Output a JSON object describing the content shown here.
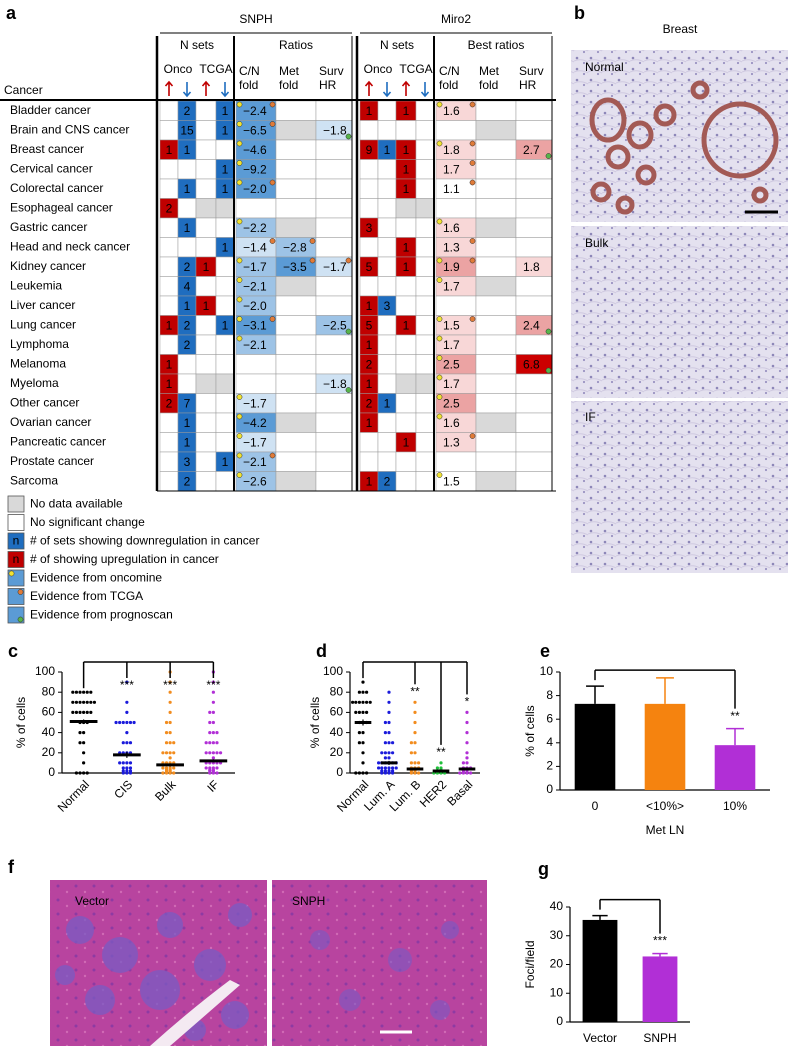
{
  "table": {
    "label": "a",
    "groups": [
      {
        "name": "SNPH",
        "sets": "N sets",
        "ratios": "Ratios"
      },
      {
        "name": "Miro2",
        "sets": "N sets",
        "ratios": "Best ratios"
      }
    ],
    "count_heads": [
      "Onco",
      "TCGA"
    ],
    "fold_heads": [
      "C/N fold",
      "Met fold",
      "Surv HR"
    ],
    "row_head": "Cancer",
    "up_color": "#c00000",
    "down_color": "#1f6dbf",
    "rows": [
      {
        "cancer": "Bladder cancer",
        "cells": [
          null,
          "2",
          null,
          "1",
          {
            "text": "−2.4",
            "fill": "#5b9bd5",
            "dots": [
              "#f1e332",
              "#e07b39"
            ]
          },
          null,
          null,
          "1",
          null,
          "1",
          null,
          {
            "text": "1.6",
            "fill": "#f8d7d7",
            "dots": [
              "#f1e332",
              "#e07b39"
            ]
          },
          null,
          null
        ]
      },
      {
        "cancer": "Brain and CNS cancer",
        "cells": [
          null,
          "15",
          null,
          "1",
          {
            "text": "−6.5",
            "fill": "#5b9bd5",
            "dots": [
              "#f1e332",
              "#e07b39"
            ]
          },
          {
            "fill": "#d9d9d9"
          },
          {
            "text": "−1.8",
            "fill": "#cfe2f3",
            "dots": [
              "#57b44a"
            ]
          },
          null,
          null,
          null,
          null,
          null,
          {
            "fill": "#d9d9d9"
          },
          null
        ]
      },
      {
        "cancer": "Breast cancer",
        "cells": [
          "1",
          "1",
          null,
          null,
          {
            "text": "−4.6",
            "fill": "#5b9bd5",
            "dots": [
              "#f1e332"
            ]
          },
          null,
          null,
          "9",
          "1",
          "1",
          null,
          {
            "text": "1.8",
            "fill": "#f8d7d7",
            "dots": [
              "#f1e332",
              "#e07b39"
            ]
          },
          null,
          {
            "text": "2.7",
            "fill": "#eba3a3",
            "dots": [
              "#57b44a"
            ]
          }
        ]
      },
      {
        "cancer": "Cervical cancer",
        "cells": [
          null,
          null,
          null,
          "1",
          {
            "text": "−9.2",
            "fill": "#5b9bd5",
            "dots": [
              "#f1e332"
            ]
          },
          null,
          null,
          null,
          null,
          "1",
          null,
          {
            "text": "1.7",
            "fill": "#f8d7d7",
            "dots": [
              "#e07b39"
            ]
          },
          null,
          null
        ]
      },
      {
        "cancer": "Colorectal cancer",
        "cells": [
          null,
          "1",
          null,
          "1",
          {
            "text": "−2.0",
            "fill": "#5b9bd5",
            "dots": [
              "#f1e332",
              "#e07b39"
            ]
          },
          null,
          null,
          null,
          null,
          "1",
          null,
          {
            "text": "1.1",
            "fill": "#ffffff",
            "dots": [
              "#e07b39"
            ]
          },
          null,
          null
        ]
      },
      {
        "cancer": "Esophageal cancer",
        "cells": [
          "2",
          null,
          {
            "fill": "#d9d9d9"
          },
          {
            "fill": "#d9d9d9"
          },
          null,
          null,
          null,
          null,
          null,
          {
            "fill": "#d9d9d9"
          },
          {
            "fill": "#d9d9d9"
          },
          null,
          null,
          null
        ]
      },
      {
        "cancer": "Gastric cancer",
        "cells": [
          null,
          "1",
          null,
          null,
          {
            "text": "−2.2",
            "fill": "#9dc3e6",
            "dots": [
              "#f1e332"
            ]
          },
          {
            "fill": "#d9d9d9"
          },
          null,
          "3",
          null,
          null,
          null,
          {
            "text": "1.6",
            "fill": "#f8d7d7",
            "dots": [
              "#f1e332"
            ]
          },
          {
            "fill": "#d9d9d9"
          },
          null
        ]
      },
      {
        "cancer": "Head and neck cancer",
        "cells": [
          null,
          null,
          null,
          "1",
          {
            "text": "−1.4",
            "fill": "#cfe2f3",
            "dots": [
              "#e07b39"
            ]
          },
          {
            "text": "−2.8",
            "fill": "#9dc3e6",
            "dots": [
              "#e07b39"
            ]
          },
          null,
          null,
          null,
          "1",
          null,
          {
            "text": "1.3",
            "fill": "#f8d7d7",
            "dots": [
              "#e07b39"
            ]
          },
          null,
          null
        ]
      },
      {
        "cancer": "Kidney cancer",
        "cells": [
          null,
          "2",
          "1",
          null,
          {
            "text": "−1.7",
            "fill": "#9dc3e6",
            "dots": [
              "#f1e332"
            ]
          },
          {
            "text": "−3.5",
            "fill": "#5b9bd5",
            "dots": [
              "#e07b39"
            ]
          },
          {
            "text": "−1.7",
            "fill": "#cfe2f3",
            "dots": [
              "#e07b39"
            ]
          },
          "5",
          null,
          "1",
          null,
          {
            "text": "1.9",
            "fill": "#eba3a3",
            "dots": [
              "#f1e332",
              "#e07b39"
            ]
          },
          null,
          {
            "text": "1.8",
            "fill": "#f8d7d7"
          }
        ]
      },
      {
        "cancer": "Leukemia",
        "cells": [
          null,
          "4",
          null,
          null,
          {
            "text": "−2.1",
            "fill": "#9dc3e6",
            "dots": [
              "#f1e332"
            ]
          },
          {
            "fill": "#d9d9d9"
          },
          null,
          null,
          null,
          null,
          null,
          {
            "text": "1.7",
            "fill": "#f8d7d7",
            "dots": [
              "#f1e332"
            ]
          },
          {
            "fill": "#d9d9d9"
          },
          null
        ]
      },
      {
        "cancer": "Liver cancer",
        "cells": [
          null,
          "1",
          "1",
          null,
          {
            "text": "−2.0",
            "fill": "#9dc3e6",
            "dots": [
              "#f1e332"
            ]
          },
          null,
          null,
          "1",
          "3",
          null,
          null,
          null,
          null,
          null
        ]
      },
      {
        "cancer": "Lung cancer",
        "cells": [
          "1",
          "2",
          null,
          "1",
          {
            "text": "−3.1",
            "fill": "#5b9bd5",
            "dots": [
              "#f1e332",
              "#e07b39"
            ]
          },
          null,
          {
            "text": "−2.5",
            "fill": "#9dc3e6",
            "dots": [
              "#57b44a"
            ]
          },
          "5",
          null,
          "1",
          null,
          {
            "text": "1.5",
            "fill": "#f8d7d7",
            "dots": [
              "#f1e332",
              "#e07b39"
            ]
          },
          null,
          {
            "text": "2.4",
            "fill": "#eba3a3",
            "dots": [
              "#57b44a"
            ]
          }
        ]
      },
      {
        "cancer": "Lymphoma",
        "cells": [
          null,
          "2",
          null,
          null,
          {
            "text": "−2.1",
            "fill": "#9dc3e6",
            "dots": [
              "#f1e332"
            ]
          },
          null,
          null,
          "1",
          null,
          null,
          null,
          {
            "text": "1.7",
            "fill": "#f8d7d7",
            "dots": [
              "#f1e332"
            ]
          },
          null,
          null
        ]
      },
      {
        "cancer": "Melanoma",
        "cells": [
          "1",
          null,
          null,
          null,
          null,
          null,
          null,
          "2",
          null,
          null,
          null,
          {
            "text": "2.5",
            "fill": "#eba3a3",
            "dots": [
              "#f1e332"
            ]
          },
          null,
          {
            "text": "6.8",
            "fill": "#cc0000",
            "dots": [
              "#57b44a"
            ]
          }
        ]
      },
      {
        "cancer": "Myeloma",
        "cells": [
          "1",
          null,
          {
            "fill": "#d9d9d9"
          },
          {
            "fill": "#d9d9d9"
          },
          null,
          null,
          {
            "text": "−1.8",
            "fill": "#cfe2f3",
            "dots": [
              "#57b44a"
            ]
          },
          "1",
          null,
          {
            "fill": "#d9d9d9"
          },
          {
            "fill": "#d9d9d9"
          },
          {
            "text": "1.7",
            "fill": "#f8d7d7",
            "dots": [
              "#f1e332"
            ]
          },
          null,
          null
        ]
      },
      {
        "cancer": "Other cancer",
        "cells": [
          "2",
          "7",
          null,
          null,
          {
            "text": "−1.7",
            "fill": "#cfe2f3",
            "dots": [
              "#f1e332"
            ]
          },
          null,
          null,
          "2",
          "1",
          null,
          null,
          {
            "text": "2.5",
            "fill": "#eba3a3",
            "dots": [
              "#f1e332"
            ]
          },
          null,
          null
        ]
      },
      {
        "cancer": "Ovarian cancer",
        "cells": [
          null,
          "1",
          null,
          null,
          {
            "text": "−4.2",
            "fill": "#5b9bd5",
            "dots": [
              "#f1e332"
            ]
          },
          {
            "fill": "#d9d9d9"
          },
          null,
          "1",
          null,
          null,
          null,
          {
            "text": "1.6",
            "fill": "#f8d7d7",
            "dots": [
              "#f1e332"
            ]
          },
          {
            "fill": "#d9d9d9"
          },
          null
        ]
      },
      {
        "cancer": "Pancreatic cancer",
        "cells": [
          null,
          "1",
          null,
          null,
          {
            "text": "−1.7",
            "fill": "#cfe2f3",
            "dots": [
              "#f1e332"
            ]
          },
          null,
          null,
          null,
          null,
          "1",
          null,
          {
            "text": "1.3",
            "fill": "#f8d7d7",
            "dots": [
              "#e07b39"
            ]
          },
          null,
          null
        ]
      },
      {
        "cancer": "Prostate cancer",
        "cells": [
          null,
          "3",
          null,
          "1",
          {
            "text": "−2.1",
            "fill": "#9dc3e6",
            "dots": [
              "#f1e332",
              "#e07b39"
            ]
          },
          null,
          null,
          null,
          null,
          null,
          null,
          null,
          null,
          null
        ]
      },
      {
        "cancer": "Sarcoma",
        "cells": [
          null,
          "2",
          null,
          null,
          {
            "text": "−2.6",
            "fill": "#9dc3e6",
            "dots": [
              "#f1e332"
            ]
          },
          {
            "fill": "#d9d9d9"
          },
          null,
          "1",
          "2",
          null,
          null,
          {
            "text": "1.5",
            "fill": "#ffffff",
            "dots": [
              "#f1e332"
            ]
          },
          {
            "fill": "#d9d9d9"
          },
          null
        ]
      }
    ]
  },
  "legend": [
    {
      "text": "No data available",
      "swatch": "#d9d9d9"
    },
    {
      "text": "No significant change",
      "swatch": "#ffffff"
    },
    {
      "text": "# of sets showing downregulation in cancer",
      "swatch": "#1f6dbf",
      "glyph": "n"
    },
    {
      "text": "# of showing upregulation in cancer",
      "swatch": "#c00000",
      "glyph": "n"
    },
    {
      "text": "Evidence from oncomine",
      "swatch": "#5b9bd5",
      "dot": "#f1e332"
    },
    {
      "text": "Evidence from TCGA",
      "swatch": "#5b9bd5",
      "dot": "#e07b39"
    },
    {
      "text": "Evidence from prognoscan",
      "swatch": "#5b9bd5",
      "dot": "#57b44a"
    }
  ],
  "images_b": {
    "label": "b",
    "title": "Breast",
    "images": [
      "Normal",
      "Bulk",
      "IF"
    ]
  },
  "images_f": {
    "label": "f",
    "images": [
      "Vector",
      "SNPH"
    ]
  },
  "chart_data": [
    {
      "type": "strip",
      "label": "c",
      "ylabel": "% of cells",
      "categories": [
        "Normal",
        "CIS",
        "Bulk",
        "IF"
      ],
      "colors": [
        "#000000",
        "#1a1adb",
        "#f28c1e",
        "#b12fd6"
      ],
      "points": [
        [
          80,
          80,
          80,
          80,
          80,
          80,
          70,
          70,
          70,
          70,
          70,
          70,
          70,
          60,
          60,
          60,
          60,
          60,
          60,
          50,
          50,
          50,
          40,
          40,
          30,
          30,
          20,
          10,
          0,
          0,
          0,
          0
        ],
        [
          90,
          70,
          60,
          50,
          50,
          50,
          50,
          50,
          50,
          40,
          30,
          30,
          30,
          20,
          20,
          20,
          20,
          10,
          10,
          10,
          10,
          5,
          5,
          5,
          2,
          2,
          2,
          0,
          0,
          0
        ],
        [
          100,
          90,
          80,
          70,
          60,
          50,
          50,
          40,
          40,
          30,
          30,
          30,
          20,
          20,
          20,
          20,
          15,
          10,
          10,
          10,
          10,
          8,
          5,
          5,
          5,
          5,
          3,
          3,
          2,
          2,
          1,
          1,
          0,
          0,
          0,
          0
        ],
        [
          100,
          90,
          80,
          70,
          60,
          60,
          50,
          50,
          40,
          40,
          40,
          30,
          30,
          30,
          30,
          20,
          20,
          20,
          20,
          20,
          15,
          10,
          10,
          10,
          10,
          10,
          5,
          5,
          5,
          5,
          3,
          3,
          2,
          2,
          0,
          0,
          0
        ]
      ],
      "means": [
        51,
        18,
        8,
        12
      ],
      "sems": [
        2,
        3,
        1.5,
        1.5
      ],
      "significance": [
        null,
        "***",
        "***",
        "***"
      ],
      "ylim": [
        0,
        100
      ],
      "yticks": [
        0,
        20,
        40,
        60,
        80,
        100
      ]
    },
    {
      "type": "strip",
      "label": "d",
      "ylabel": "% of cells",
      "categories": [
        "Normal",
        "Lum. A",
        "Lum. B",
        "HER2",
        "Basal"
      ],
      "colors": [
        "#000000",
        "#1a1adb",
        "#f28c1e",
        "#1fbf3a",
        "#b12fd6"
      ],
      "points": [
        [
          90,
          80,
          80,
          80,
          70,
          70,
          70,
          70,
          70,
          70,
          60,
          60,
          60,
          60,
          50,
          50,
          50,
          40,
          40,
          30,
          30,
          20,
          10,
          0,
          0,
          0,
          0
        ],
        [
          80,
          70,
          60,
          50,
          50,
          40,
          40,
          30,
          30,
          30,
          20,
          20,
          20,
          20,
          15,
          15,
          10,
          10,
          10,
          10,
          10,
          10,
          5,
          5,
          5,
          5,
          5,
          5,
          2,
          2,
          2,
          2,
          0,
          0,
          0,
          0
        ],
        [
          70,
          60,
          50,
          40,
          30,
          30,
          20,
          20,
          10,
          10,
          10,
          5,
          5,
          5,
          2,
          2,
          0,
          0,
          0
        ],
        [
          10,
          5,
          5,
          3,
          2,
          2,
          1,
          1,
          0,
          0,
          0,
          0
        ],
        [
          60,
          50,
          40,
          30,
          20,
          15,
          10,
          10,
          5,
          5,
          5,
          2,
          2,
          0,
          0,
          0,
          0
        ]
      ],
      "means": [
        50,
        10,
        4,
        2,
        4
      ],
      "sems": [
        3,
        2,
        1.5,
        0.5,
        1.5
      ],
      "significance": [
        null,
        null,
        "**",
        "**",
        "*"
      ],
      "ylim": [
        0,
        100
      ],
      "yticks": [
        0,
        20,
        40,
        60,
        80,
        100
      ]
    },
    {
      "type": "bar",
      "label": "e",
      "ylabel": "% of cells",
      "xlabel": "Met LN",
      "categories": [
        "0",
        "<10%>",
        "10%"
      ],
      "values": [
        7.3,
        7.3,
        3.8
      ],
      "errors": [
        1.5,
        2.2,
        1.4
      ],
      "colors": [
        "#000000",
        "#f5830f",
        "#b12fd6"
      ],
      "significance": [
        null,
        null,
        "**"
      ],
      "ylim": [
        0,
        10
      ],
      "yticks": [
        0,
        2,
        4,
        6,
        8,
        10
      ]
    },
    {
      "type": "bar",
      "label": "g",
      "ylabel": "Foci/field",
      "categories": [
        "Vector",
        "SNPH"
      ],
      "values": [
        35.5,
        22.8
      ],
      "errors": [
        1.5,
        1
      ],
      "colors": [
        "#000000",
        "#b12fd6"
      ],
      "significance": [
        null,
        "***"
      ],
      "ylim": [
        0,
        40
      ],
      "yticks": [
        0,
        10,
        20,
        30,
        40
      ]
    }
  ]
}
